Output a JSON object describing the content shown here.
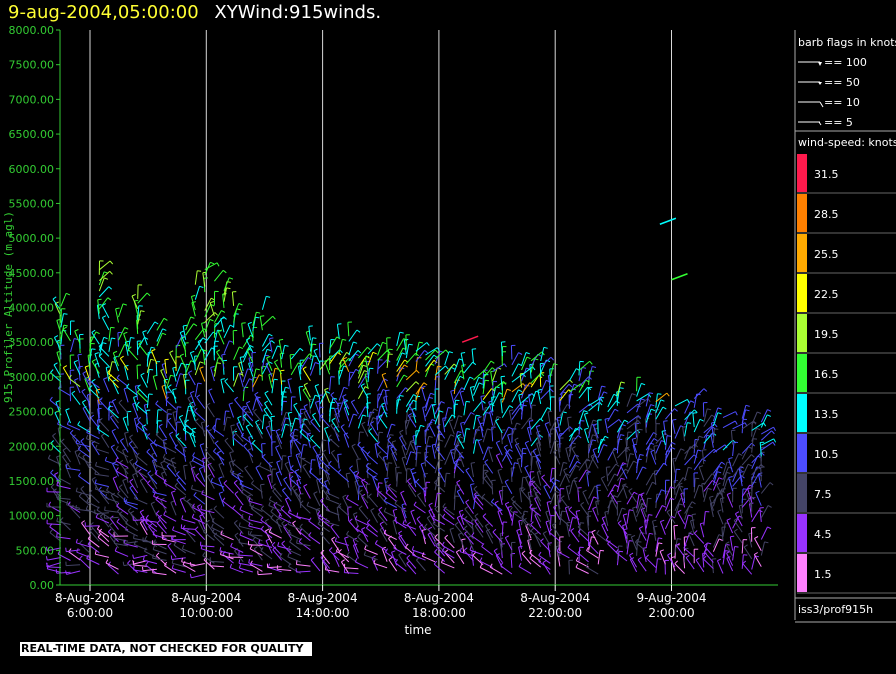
{
  "header": {
    "date": "9-aug-2004,05:00:00",
    "name": "XYWind:915winds."
  },
  "notice": "REAL-TIME DATA, NOT CHECKED FOR QUALITY",
  "colors": {
    "axis": "#33cc33",
    "ylabel": "#33cc33",
    "ytick": "#33cc33",
    "grid": "#ffffff",
    "title_date": "#ffff33"
  },
  "legend": {
    "barb_title": "barb flags in knots",
    "barbs": [
      {
        "label": "== 100",
        "kind": "pennant"
      },
      {
        "label": "== 50",
        "kind": "pennant-small"
      },
      {
        "label": "== 10",
        "kind": "full"
      },
      {
        "label": "== 5",
        "kind": "half"
      }
    ],
    "speed_title": "wind-speed: knots",
    "scale": [
      {
        "label": "31.5",
        "color": "#ff1a4d"
      },
      {
        "label": "28.5",
        "color": "#ff8000"
      },
      {
        "label": "25.5",
        "color": "#ffaa00"
      },
      {
        "label": "22.5",
        "color": "#ffff00"
      },
      {
        "label": "19.5",
        "color": "#aaff33"
      },
      {
        "label": "16.5",
        "color": "#33ff33"
      },
      {
        "label": "13.5",
        "color": "#00ffff"
      },
      {
        "label": "10.5",
        "color": "#4d4dff"
      },
      {
        "label": "7.5",
        "color": "#444466"
      },
      {
        "label": "4.5",
        "color": "#9933ff"
      },
      {
        "label": "1.5",
        "color": "#ff80ff"
      }
    ],
    "source": "iss3/prof915h"
  },
  "chart_data": {
    "type": "scatter",
    "subtype": "wind-barb time-height",
    "xlabel": "time",
    "ylabel": "915 Profiler Altitude (m agl)",
    "ylim": [
      0,
      8000
    ],
    "yticks": [
      "0.00",
      "500.00",
      "1000.00",
      "1500.00",
      "2000.00",
      "2500.00",
      "3000.00",
      "3500.00",
      "4000.00",
      "4500.00",
      "5000.00",
      "5500.00",
      "6000.00",
      "6500.00",
      "7000.00",
      "7500.00",
      "8000.00"
    ],
    "xlim_hours": [
      4.5,
      5.0
    ],
    "xticks": [
      {
        "hour": 6,
        "line1": "8-Aug-2004",
        "line2": "6:00:00"
      },
      {
        "hour": 10,
        "line1": "8-Aug-2004",
        "line2": "10:00:00"
      },
      {
        "hour": 14,
        "line1": "8-Aug-2004",
        "line2": "14:00:00"
      },
      {
        "hour": 18,
        "line1": "8-Aug-2004",
        "line2": "18:00:00"
      },
      {
        "hour": 22,
        "line1": "8-Aug-2004",
        "line2": "22:00:00"
      },
      {
        "hour": 26,
        "line1": "9-Aug-2004",
        "line2": "2:00:00"
      }
    ],
    "grid": "vertical",
    "legend_position": "right"
  }
}
